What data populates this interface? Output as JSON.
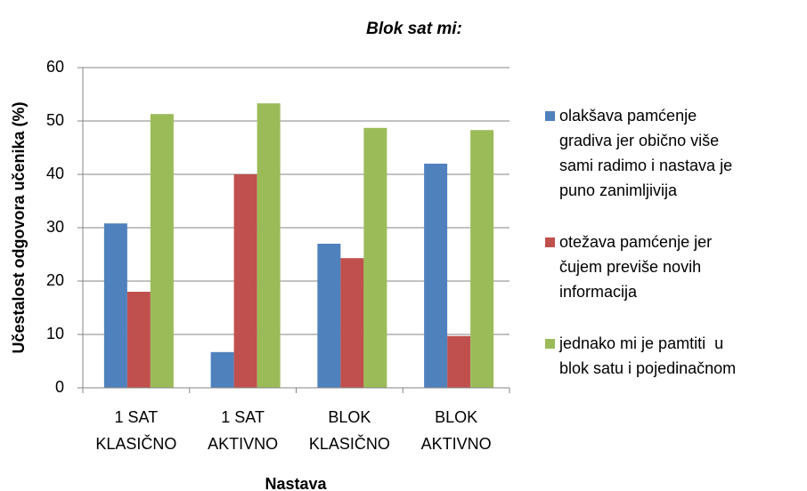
{
  "chart_data": {
    "type": "bar",
    "title": "Blok sat mi:",
    "x_label": "Nastava",
    "y_label": "Učestalost odgovora učenika (%)",
    "categories": [
      "1 SAT\nKLASIČNO",
      "1 SAT\nAKTIVNO",
      "BLOK\nKLASIČNO",
      "BLOK\nAKTIVNO"
    ],
    "series": [
      {
        "name": "olakšava pamćenje\ngradiva jer obično više\nsami radimo i nastava je\npuno zanimljivija",
        "color": "#4f81bd",
        "values": [
          30.8,
          6.7,
          27,
          42
        ]
      },
      {
        "name": "otežava pamćenje jer\nčujem previše novih\ninformacija",
        "color": "#c0504d",
        "values": [
          18,
          40,
          24.3,
          9.7
        ]
      },
      {
        "name": "jednako mi je pamtiti  u\nblok satu i pojedinačnom",
        "color": "#9bbb59",
        "values": [
          51.3,
          53.3,
          48.7,
          48.3
        ]
      }
    ],
    "ylim": [
      0,
      60
    ],
    "yticks": [
      0,
      10,
      20,
      30,
      40,
      50,
      60
    ],
    "grid": true,
    "legend": "right"
  }
}
